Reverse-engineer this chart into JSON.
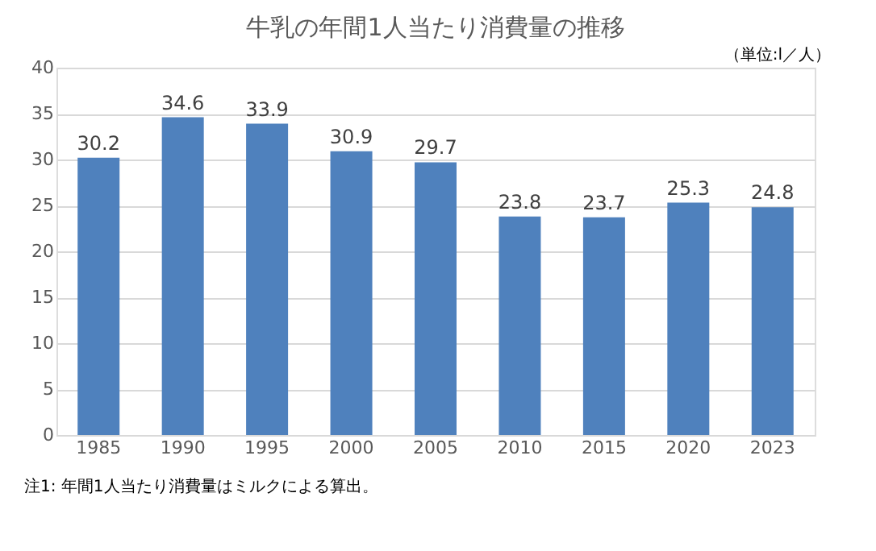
{
  "chart_data": {
    "type": "bar",
    "title": "牛乳の年間1人当たり消費量の推移",
    "categories": [
      "1985",
      "1990",
      "1995",
      "2000",
      "2005",
      "2010",
      "2015",
      "2020",
      "2023"
    ],
    "values": [
      30.2,
      34.6,
      33.9,
      30.9,
      29.7,
      23.8,
      23.7,
      25.3,
      24.8
    ],
    "color": "#4f81bd",
    "ylim": [
      0,
      40
    ],
    "yticks": [
      0,
      5,
      10,
      15,
      20,
      25,
      30,
      35,
      40
    ],
    "grid": "y",
    "data_labels": true,
    "annotations": [
      "（単位:l／人）",
      "注1: 年間1人当たり消費量はミルクによる算出。"
    ]
  }
}
